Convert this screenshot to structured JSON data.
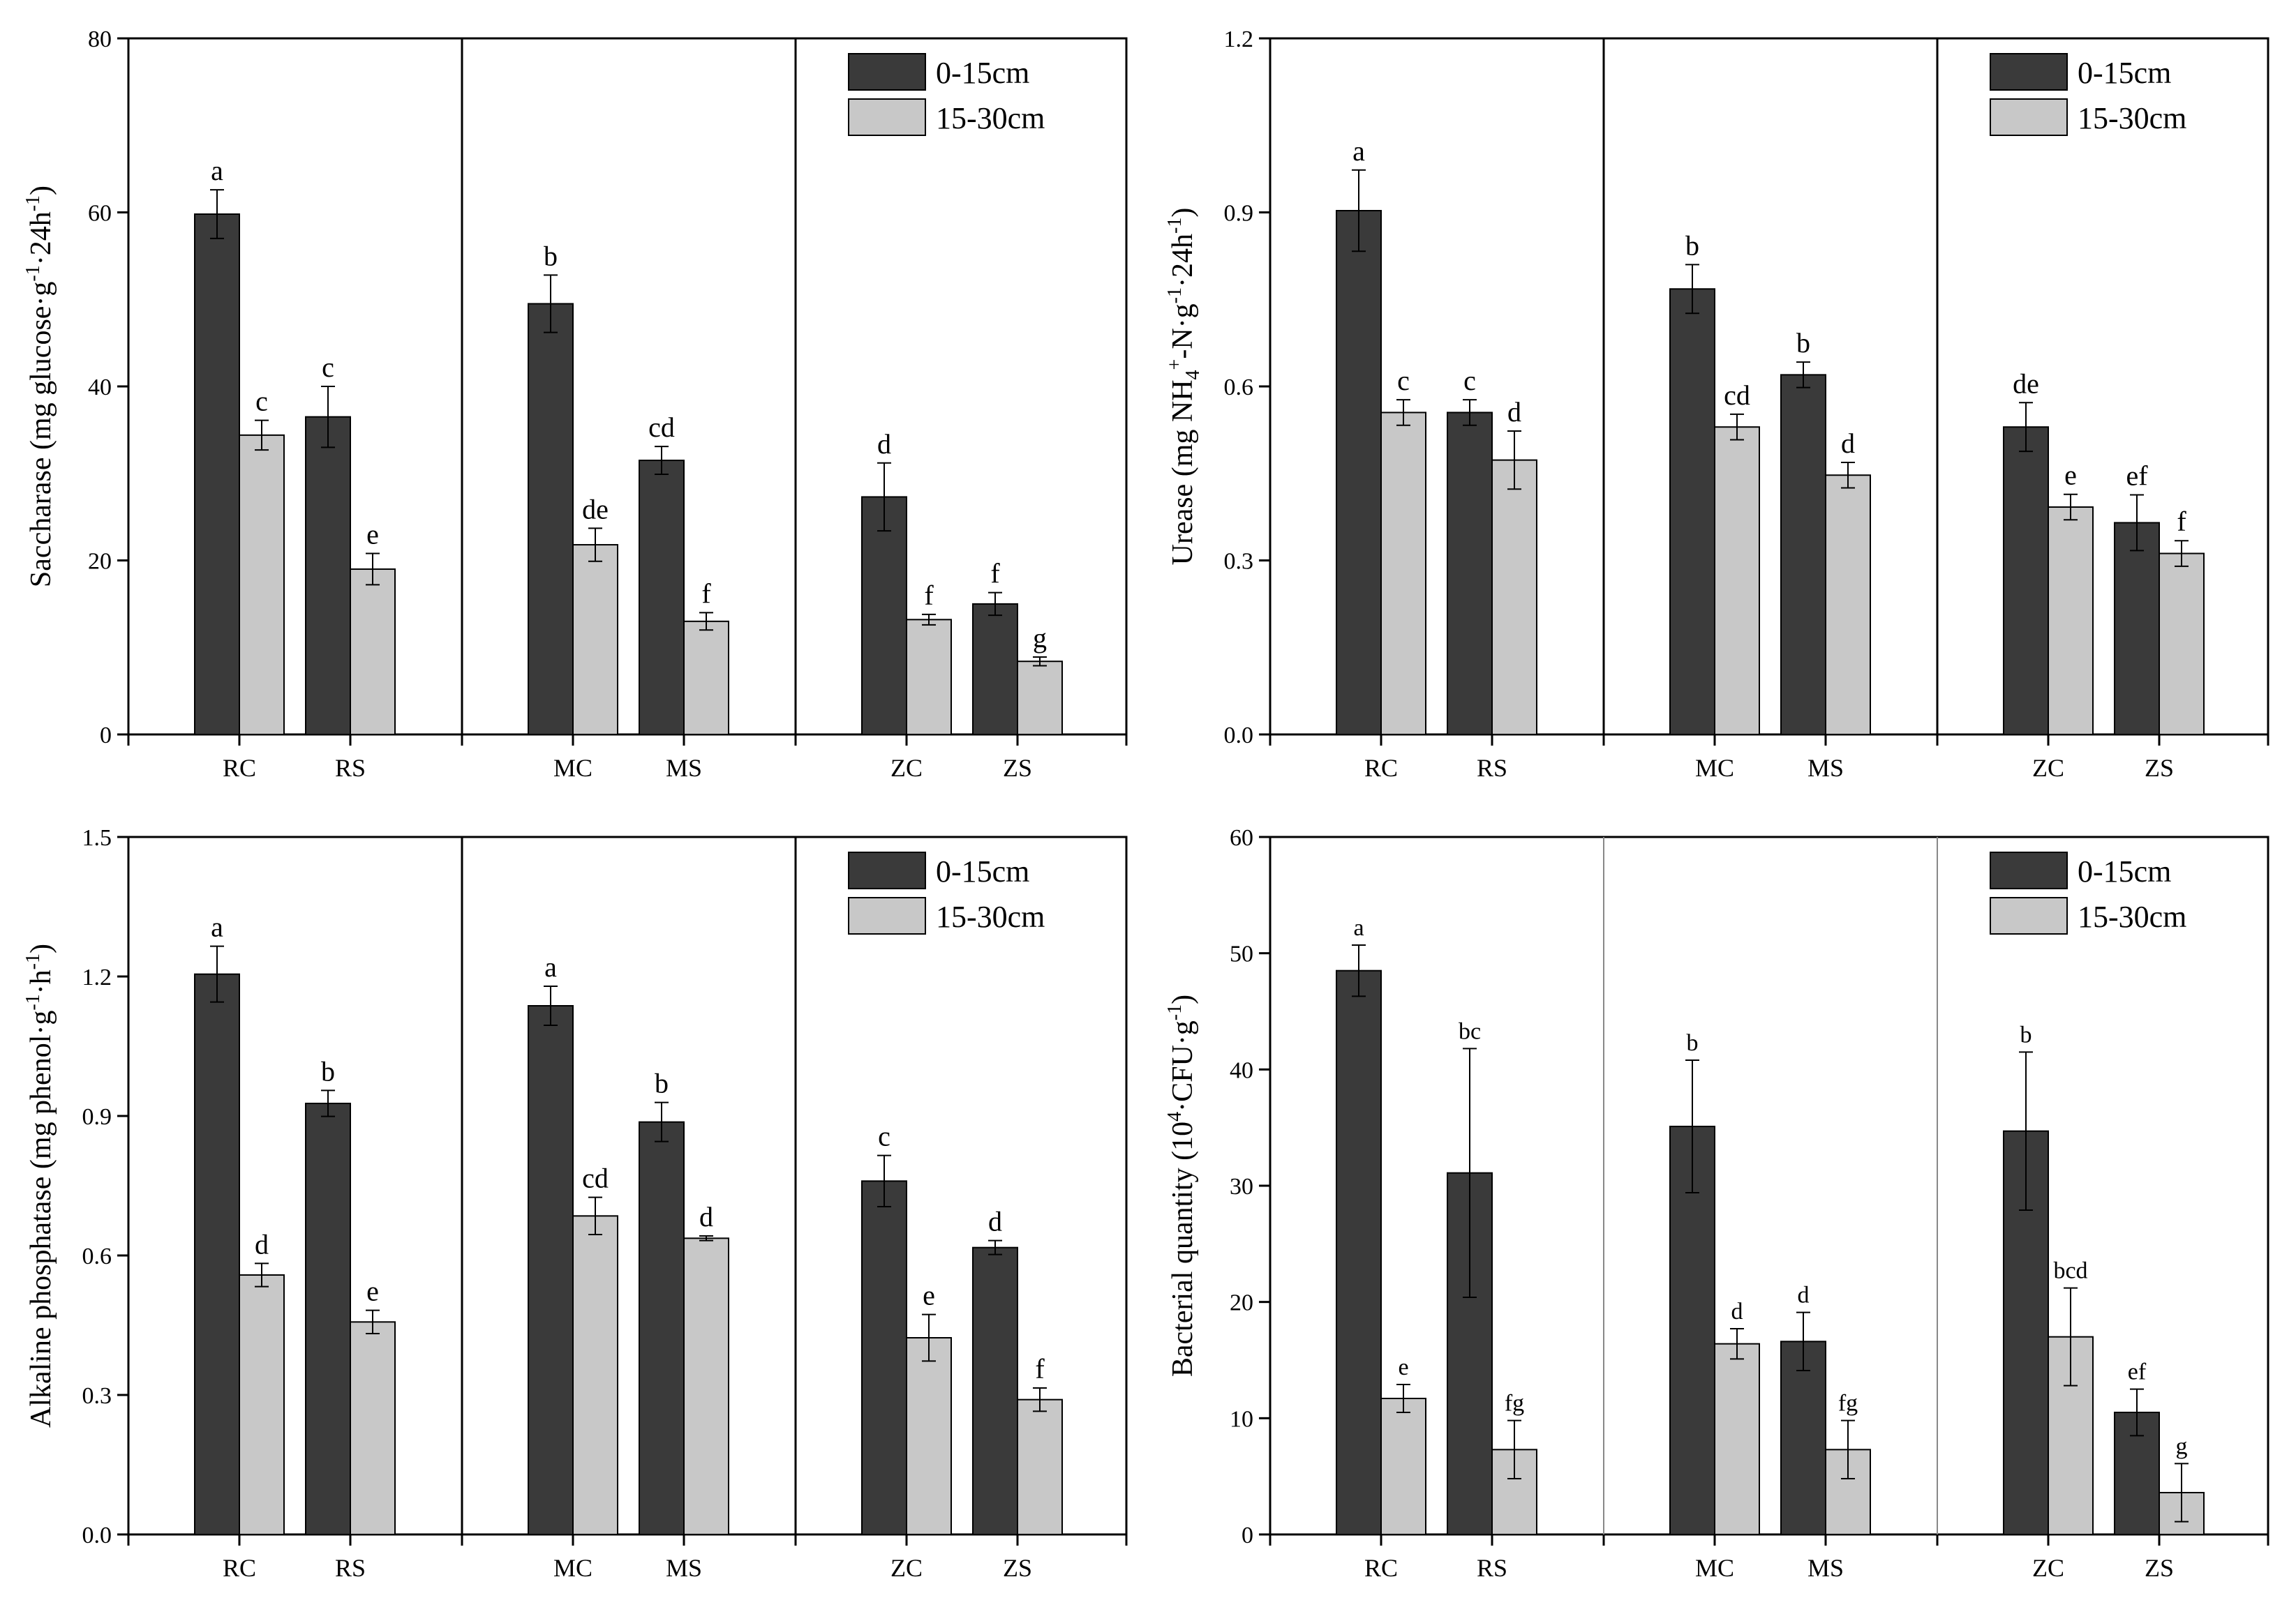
{
  "legend": {
    "series": [
      "0-15cm",
      "15-30cm"
    ]
  },
  "colors": {
    "dark": "#3a3a3a",
    "light": "#c8c8c8",
    "axis": "#000000"
  },
  "chart_data": [
    {
      "id": "saccharase",
      "type": "bar",
      "ylabel": "Saccharase (mg glucose·g⁻¹·24h⁻¹)",
      "ylabel_parts": [
        {
          "t": "Saccharase (mg glucose·g",
          "sup": false
        },
        {
          "t": "-1",
          "sup": true
        },
        {
          "t": "·24h",
          "sup": false
        },
        {
          "t": "-1",
          "sup": true
        },
        {
          "t": ")",
          "sup": false
        }
      ],
      "ylim": [
        0,
        80
      ],
      "yticks": [
        0,
        20,
        40,
        60,
        80
      ],
      "ytick_labels": [
        "0",
        "20",
        "40",
        "60",
        "80"
      ],
      "categories": [
        "RC",
        "RS",
        "MC",
        "MS",
        "ZC",
        "ZS"
      ],
      "groups": [
        [
          "RC",
          "RS"
        ],
        [
          "MC",
          "MS"
        ],
        [
          "ZC",
          "ZS"
        ]
      ],
      "series": [
        {
          "name": "0-15cm",
          "values": [
            59.8,
            36.5,
            49.5,
            31.5,
            27.3,
            15.0
          ],
          "errors": [
            2.8,
            3.5,
            3.3,
            1.6,
            3.9,
            1.3
          ],
          "labels": [
            "a",
            "c",
            "b",
            "cd",
            "d",
            "f"
          ]
        },
        {
          "name": "15-30cm",
          "values": [
            34.4,
            19.0,
            21.8,
            13.0,
            13.2,
            8.4
          ],
          "errors": [
            1.7,
            1.8,
            1.9,
            1.0,
            0.6,
            0.5
          ],
          "labels": [
            "c",
            "e",
            "de",
            "f",
            "f",
            "g"
          ]
        }
      ]
    },
    {
      "id": "urease",
      "type": "bar",
      "ylabel": "Urease (mg NH4⁺-N·g⁻¹·24h⁻¹)",
      "ylabel_parts": [
        {
          "t": "Urease (mg NH",
          "sup": false
        },
        {
          "t": "4",
          "sub": true
        },
        {
          "t": "+",
          "sup": true
        },
        {
          "t": "-N·g",
          "sup": false
        },
        {
          "t": "-1",
          "sup": true
        },
        {
          "t": "·24h",
          "sup": false
        },
        {
          "t": "-1",
          "sup": true
        },
        {
          "t": ")",
          "sup": false
        }
      ],
      "ylim": [
        0,
        1.2
      ],
      "yticks": [
        0,
        0.3,
        0.6,
        0.9,
        1.2
      ],
      "ytick_labels": [
        "0.0",
        "0.3",
        "0.6",
        "0.9",
        "1.2"
      ],
      "categories": [
        "RC",
        "RS",
        "MC",
        "MS",
        "ZC",
        "ZS"
      ],
      "groups": [
        [
          "RC",
          "RS"
        ],
        [
          "MC",
          "MS"
        ],
        [
          "ZC",
          "ZS"
        ]
      ],
      "series": [
        {
          "name": "0-15cm",
          "values": [
            0.903,
            0.555,
            0.768,
            0.62,
            0.53,
            0.365
          ],
          "errors": [
            0.07,
            0.022,
            0.042,
            0.022,
            0.042,
            0.048
          ],
          "labels": [
            "a",
            "c",
            "b",
            "b",
            "de",
            "ef"
          ]
        },
        {
          "name": "15-30cm",
          "values": [
            0.555,
            0.473,
            0.53,
            0.447,
            0.392,
            0.312
          ],
          "errors": [
            0.022,
            0.05,
            0.022,
            0.022,
            0.022,
            0.022
          ],
          "labels": [
            "c",
            "d",
            "cd",
            "d",
            "e",
            "f"
          ]
        }
      ]
    },
    {
      "id": "alkaline",
      "type": "bar",
      "ylabel": "Alkaline phosphatase (mg phenol·g⁻¹·h⁻¹)",
      "ylabel_parts": [
        {
          "t": "Alkaline phosphatase (mg phenol·g",
          "sup": false
        },
        {
          "t": "-1",
          "sup": true
        },
        {
          "t": "·h",
          "sup": false
        },
        {
          "t": "-1",
          "sup": true
        },
        {
          "t": ")",
          "sup": false
        }
      ],
      "ylim": [
        0,
        1.5
      ],
      "yticks": [
        0,
        0.3,
        0.6,
        0.9,
        1.2,
        1.5
      ],
      "ytick_labels": [
        "0.0",
        "0.3",
        "0.6",
        "0.9",
        "1.2",
        "1.5"
      ],
      "categories": [
        "RC",
        "RS",
        "MC",
        "MS",
        "ZC",
        "ZS"
      ],
      "groups": [
        [
          "RC",
          "RS"
        ],
        [
          "MC",
          "MS"
        ],
        [
          "ZC",
          "ZS"
        ]
      ],
      "series": [
        {
          "name": "0-15cm",
          "values": [
            1.205,
            0.927,
            1.137,
            0.887,
            0.76,
            0.617
          ],
          "errors": [
            0.06,
            0.028,
            0.042,
            0.042,
            0.055,
            0.015
          ],
          "labels": [
            "a",
            "b",
            "a",
            "b",
            "c",
            "d"
          ]
        },
        {
          "name": "15-30cm",
          "values": [
            0.558,
            0.457,
            0.685,
            0.637,
            0.423,
            0.29
          ],
          "errors": [
            0.025,
            0.025,
            0.04,
            0.005,
            0.05,
            0.025
          ],
          "labels": [
            "d",
            "e",
            "cd",
            "d",
            "e",
            "f"
          ]
        }
      ]
    },
    {
      "id": "bacterial",
      "type": "bar",
      "ylabel": "Bacterial quantity (10⁴·CFU·g⁻¹)",
      "ylabel_parts": [
        {
          "t": "Bacterial quantity (10",
          "sup": false
        },
        {
          "t": "4",
          "sup": true
        },
        {
          "t": "·CFU·g",
          "sup": false
        },
        {
          "t": "-1",
          "sup": true
        },
        {
          "t": ")",
          "sup": false
        }
      ],
      "small_labels": true,
      "ylim": [
        0,
        60
      ],
      "yticks": [
        0,
        10,
        20,
        30,
        40,
        50,
        60
      ],
      "ytick_labels": [
        "0",
        "10",
        "20",
        "30",
        "40",
        "50",
        "60"
      ],
      "categories": [
        "RC",
        "RS",
        "MC",
        "MS",
        "ZC",
        "ZS"
      ],
      "groups": [
        [
          "RC",
          "RS"
        ],
        [
          "MC",
          "MS"
        ],
        [
          "ZC",
          "ZS"
        ]
      ],
      "series": [
        {
          "name": "0-15cm",
          "values": [
            48.5,
            31.1,
            35.1,
            16.6,
            34.7,
            10.5
          ],
          "errors": [
            2.2,
            10.7,
            5.7,
            2.5,
            6.8,
            2.0
          ],
          "labels": [
            "a",
            "bc",
            "b",
            "d",
            "b",
            "ef"
          ]
        },
        {
          "name": "15-30cm",
          "values": [
            11.7,
            7.3,
            16.4,
            7.3,
            17.0,
            3.6
          ],
          "errors": [
            1.2,
            2.5,
            1.3,
            2.5,
            4.2,
            2.5
          ],
          "labels": [
            "e",
            "fg",
            "d",
            "fg",
            "bcd",
            "g"
          ]
        }
      ]
    }
  ]
}
